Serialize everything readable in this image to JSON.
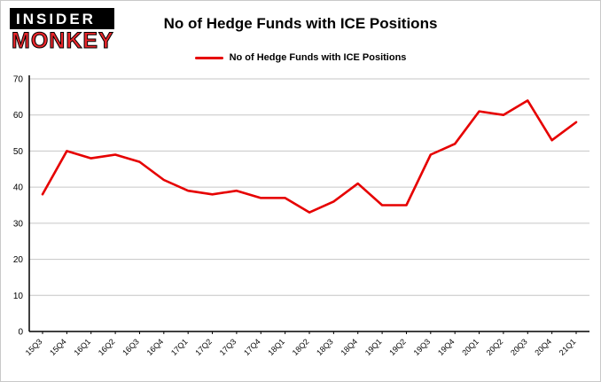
{
  "brand": {
    "line1": "INSIDER",
    "line2": "MONKEY"
  },
  "title": "No of Hedge Funds with ICE Positions",
  "legend": {
    "label": "No of Hedge Funds with ICE Positions"
  },
  "chart_data": {
    "type": "line",
    "title": "No of Hedge Funds with ICE Positions",
    "categories": [
      "15Q3",
      "15Q4",
      "16Q1",
      "16Q2",
      "16Q3",
      "16Q4",
      "17Q1",
      "17Q2",
      "17Q3",
      "17Q4",
      "18Q1",
      "18Q2",
      "18Q3",
      "18Q4",
      "19Q1",
      "19Q2",
      "19Q3",
      "19Q4",
      "20Q1",
      "20Q2",
      "20Q3",
      "20Q4",
      "21Q1"
    ],
    "values": [
      38,
      50,
      48,
      49,
      47,
      42,
      39,
      38,
      39,
      37,
      37,
      33,
      36,
      41,
      35,
      35,
      49,
      52,
      61,
      60,
      64,
      53,
      58
    ],
    "xlabel": "",
    "ylabel": "",
    "ylim": [
      0,
      70
    ],
    "ytick_step": 10,
    "grid": true,
    "legend_position": "top",
    "line_color": "#e60000",
    "grid_color": "#c6c6c6",
    "axis_color": "#000000"
  }
}
